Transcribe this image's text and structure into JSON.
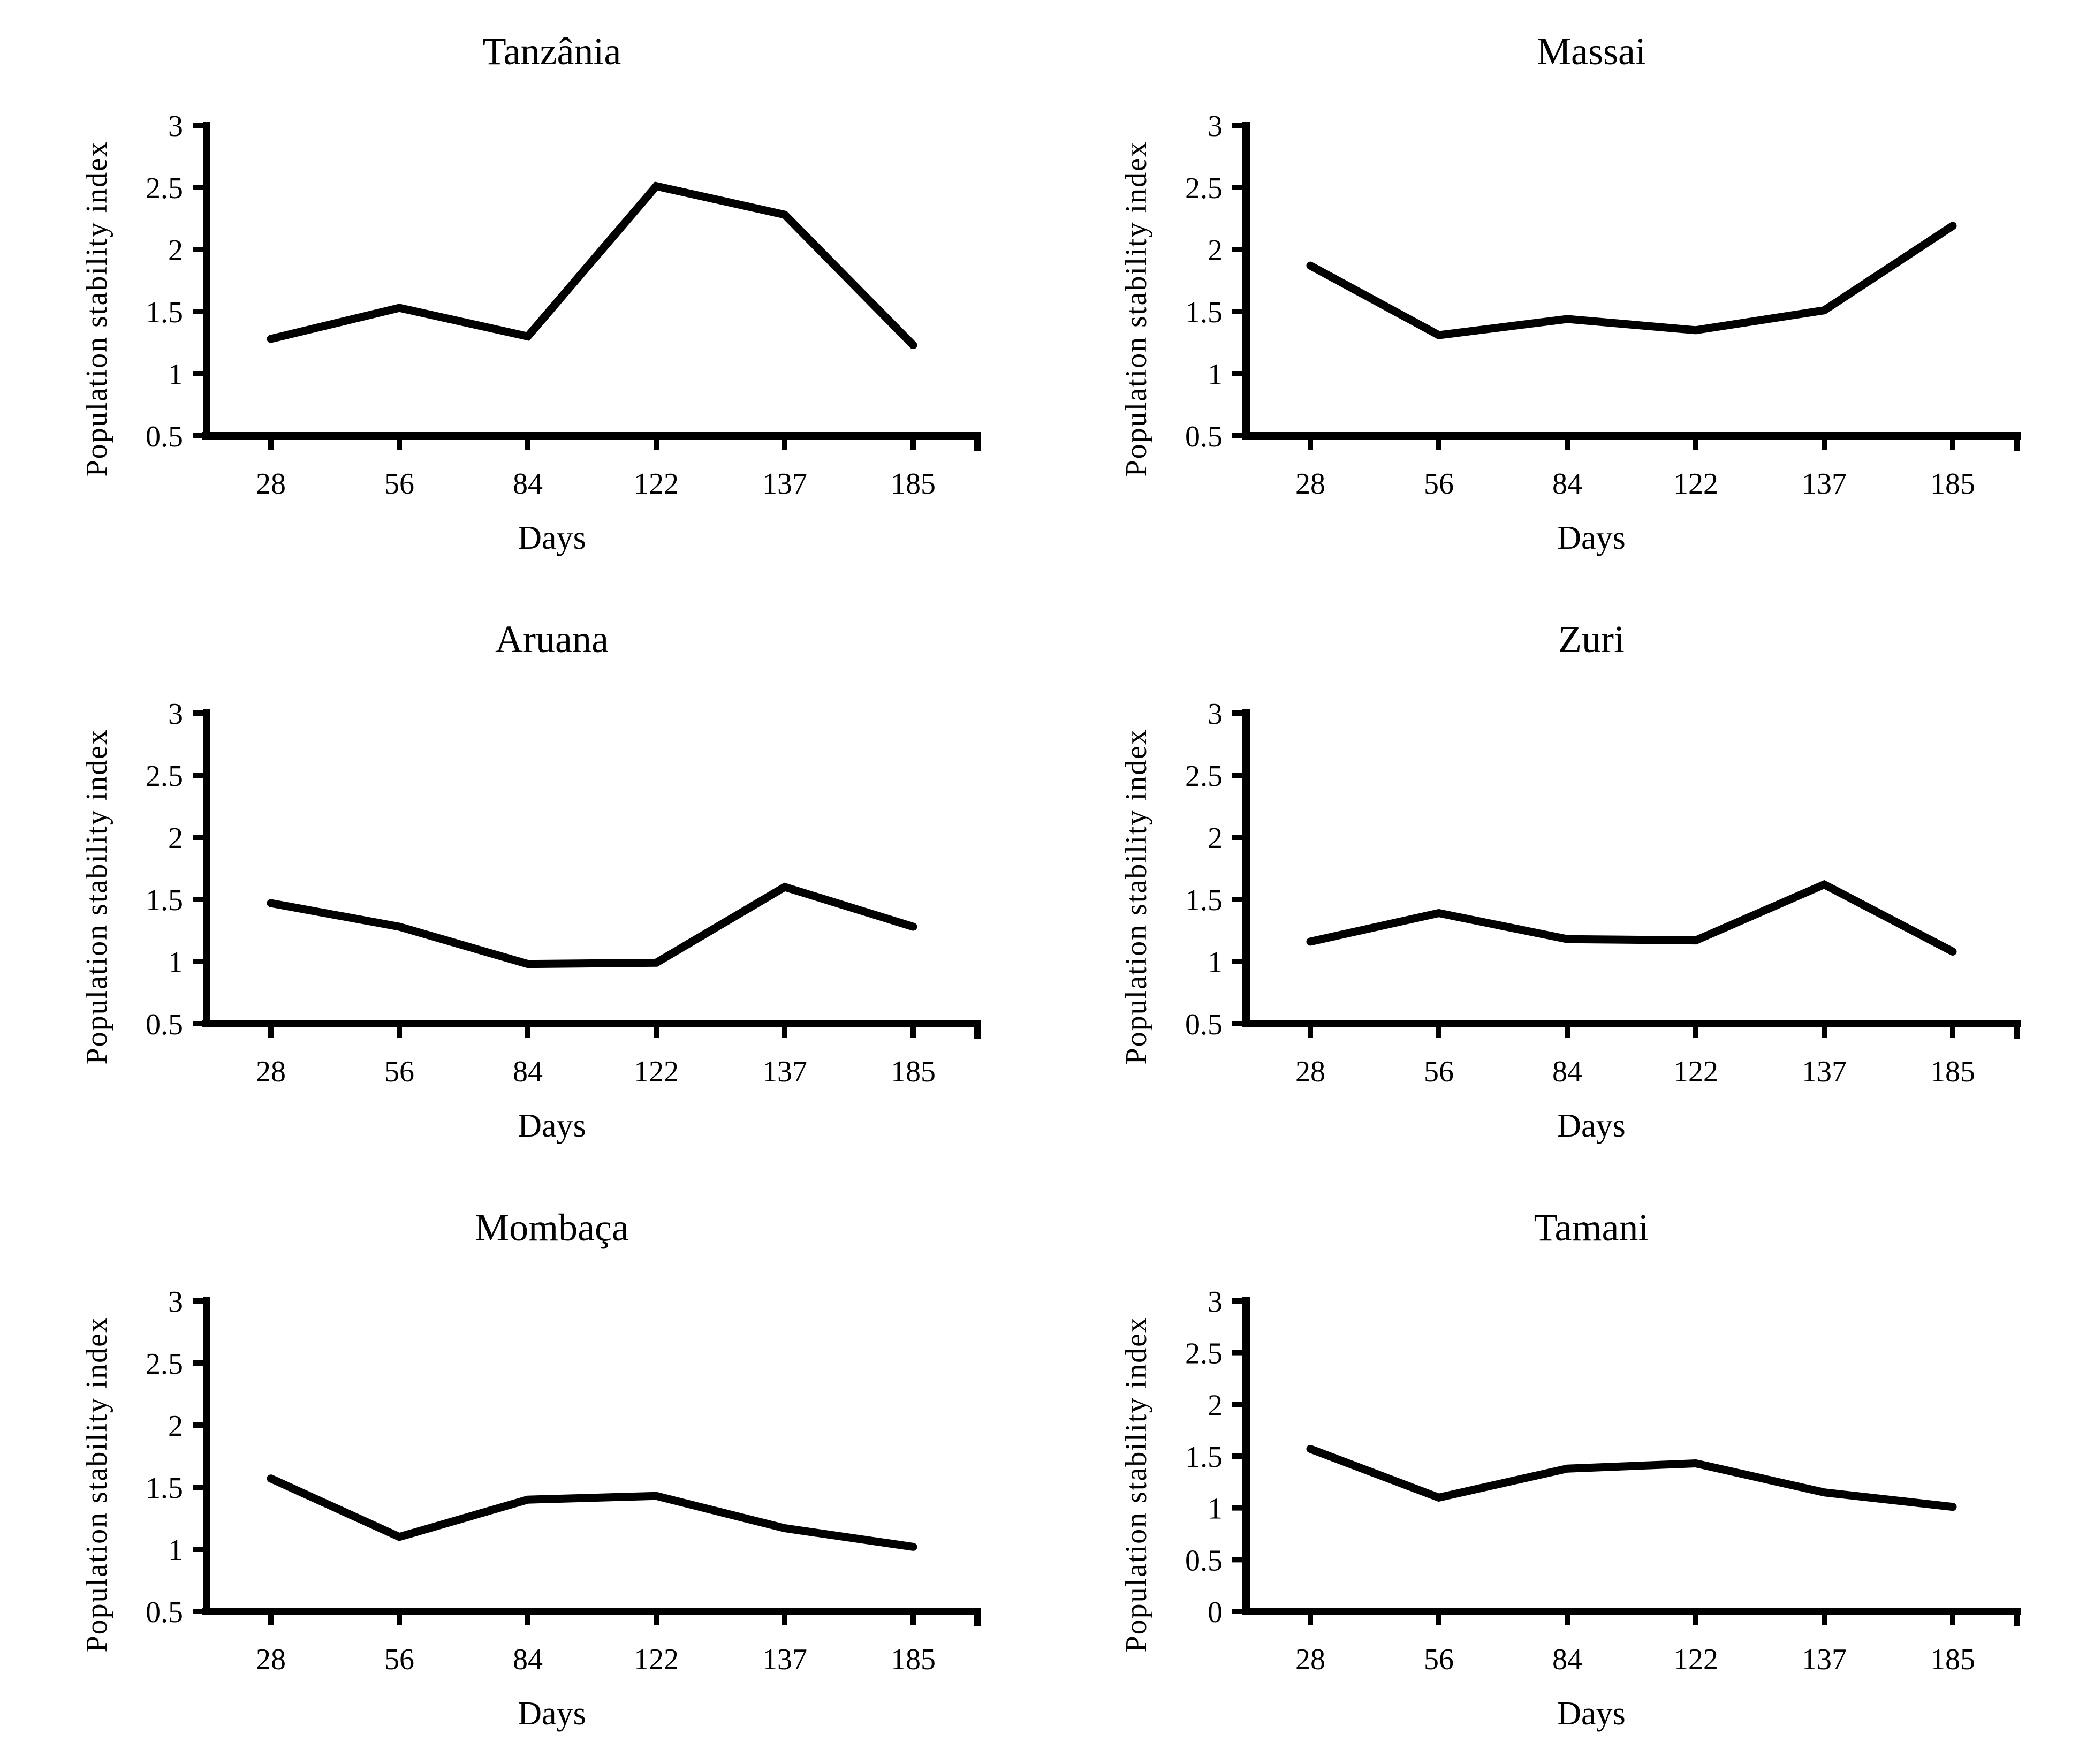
{
  "figure": {
    "background": "#ffffff",
    "line_color": "#000000",
    "x_axis_label": "Days",
    "y_axis_label": "Population stability index"
  },
  "chart_data": [
    {
      "id": "tanzania",
      "type": "line",
      "title": "Tanzânia",
      "xlabel": "Days",
      "ylabel": "Population stability index",
      "categories": [
        "28",
        "56",
        "84",
        "122",
        "137",
        "185"
      ],
      "values": [
        1.28,
        1.53,
        1.3,
        2.51,
        2.28,
        1.23
      ],
      "y_ticks": [
        0.5,
        1,
        1.5,
        2,
        2.5,
        3
      ],
      "ylim": [
        0.5,
        3
      ],
      "grid": false,
      "legend": false,
      "line_color": "#000000"
    },
    {
      "id": "massai",
      "type": "line",
      "title": "Massai",
      "xlabel": "Days",
      "ylabel": "Population stability index",
      "categories": [
        "28",
        "56",
        "84",
        "122",
        "137",
        "185"
      ],
      "values": [
        1.87,
        1.31,
        1.44,
        1.35,
        1.51,
        2.19
      ],
      "y_ticks": [
        0.5,
        1,
        1.5,
        2,
        2.5,
        3
      ],
      "ylim": [
        0.5,
        3
      ],
      "grid": false,
      "legend": false,
      "line_color": "#000000"
    },
    {
      "id": "aruana",
      "type": "line",
      "title": "Aruana",
      "xlabel": "Days",
      "ylabel": "Population stability index",
      "categories": [
        "28",
        "56",
        "84",
        "122",
        "137",
        "185"
      ],
      "values": [
        1.47,
        1.28,
        0.98,
        0.99,
        1.6,
        1.28
      ],
      "y_ticks": [
        0.5,
        1,
        1.5,
        2,
        2.5,
        3
      ],
      "ylim": [
        0.5,
        3
      ],
      "grid": false,
      "legend": false,
      "line_color": "#000000"
    },
    {
      "id": "zuri",
      "type": "line",
      "title": "Zuri",
      "xlabel": "Days",
      "ylabel": "Population stability index",
      "categories": [
        "28",
        "56",
        "84",
        "122",
        "137",
        "185"
      ],
      "values": [
        1.16,
        1.39,
        1.18,
        1.17,
        1.62,
        1.08
      ],
      "y_ticks": [
        0.5,
        1,
        1.5,
        2,
        2.5,
        3
      ],
      "ylim": [
        0.5,
        3
      ],
      "grid": false,
      "legend": false,
      "line_color": "#000000"
    },
    {
      "id": "mombaca",
      "type": "line",
      "title": "Mombaça",
      "xlabel": "Days",
      "ylabel": "Population stability index",
      "categories": [
        "28",
        "56",
        "84",
        "122",
        "137",
        "185"
      ],
      "values": [
        1.57,
        1.1,
        1.4,
        1.43,
        1.17,
        1.02
      ],
      "y_ticks": [
        0.5,
        1,
        1.5,
        2,
        2.5,
        3
      ],
      "ylim": [
        0.5,
        3
      ],
      "grid": false,
      "legend": false,
      "line_color": "#000000"
    },
    {
      "id": "tamani",
      "type": "line",
      "title": "Tamani",
      "xlabel": "Days",
      "ylabel": "Population stability index",
      "categories": [
        "28",
        "56",
        "84",
        "122",
        "137",
        "185"
      ],
      "values": [
        1.57,
        1.1,
        1.38,
        1.43,
        1.15,
        1.01
      ],
      "y_ticks": [
        0,
        0.5,
        1,
        1.5,
        2,
        2.5,
        3
      ],
      "ylim": [
        0,
        3
      ],
      "grid": false,
      "legend": false,
      "line_color": "#000000"
    }
  ]
}
